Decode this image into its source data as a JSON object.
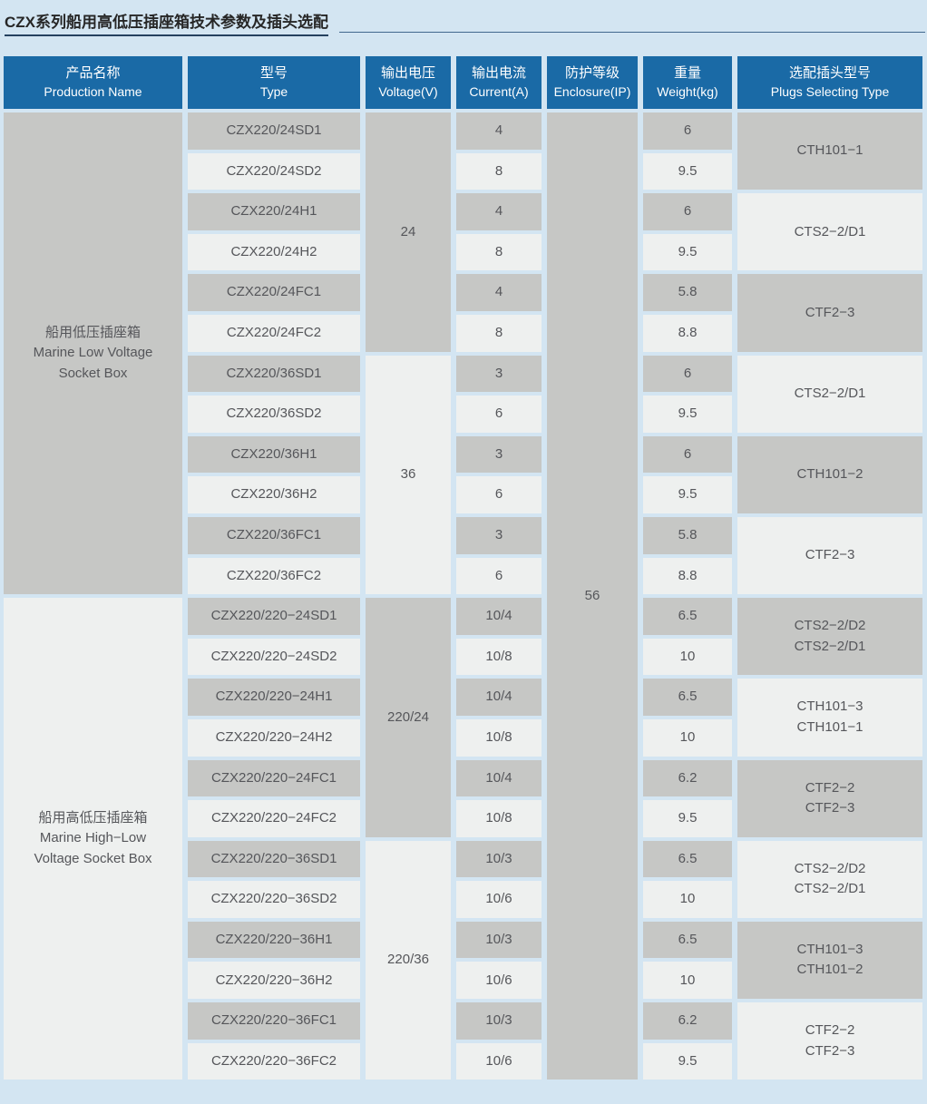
{
  "title": "CZX系列船用高低压插座箱技术参数及插头选配",
  "colors": {
    "page_bg": "#d3e5f2",
    "header_bg": "#1a6aa6",
    "header_text": "#ffffff",
    "cell_dark": "#c6c7c5",
    "cell_light": "#eef0ef",
    "cell_text": "#55565a",
    "title_text": "#262626",
    "title_underline": "#24415f",
    "rule_line": "#41688f"
  },
  "table": {
    "headers": [
      {
        "zh": "产品名称",
        "en": "Production Name"
      },
      {
        "zh": "型号",
        "en": "Type"
      },
      {
        "zh": "输出电压",
        "en": "Voltage(V)"
      },
      {
        "zh": "输出电流",
        "en": "Current(A)"
      },
      {
        "zh": "防护等级",
        "en": "Enclosure(IP)"
      },
      {
        "zh": "重量",
        "en": "Weight(kg)"
      },
      {
        "zh": "选配插头型号",
        "en": "Plugs Selecting Type"
      }
    ],
    "products": [
      {
        "name": "船用低压插座箱\nMarine Low Voltage\nSocket Box"
      },
      {
        "name": "船用高低压插座箱\nMarine High−Low\nVoltage Socket Box"
      }
    ],
    "voltage_groups": [
      {
        "voltage": "24"
      },
      {
        "voltage": "36"
      },
      {
        "voltage": "220/24"
      },
      {
        "voltage": "220/36"
      }
    ],
    "enclosure_ip": "56",
    "plug_groups": [
      {
        "plugs": "CTH101−1"
      },
      {
        "plugs": "CTS2−2/D1"
      },
      {
        "plugs": "CTF2−3"
      },
      {
        "plugs": "CTS2−2/D1"
      },
      {
        "plugs": "CTH101−2"
      },
      {
        "plugs": "CTF2−3"
      },
      {
        "plugs": "CTS2−2/D2\nCTS2−2/D1"
      },
      {
        "plugs": "CTH101−3\nCTH101−1"
      },
      {
        "plugs": "CTF2−2\nCTF2−3"
      },
      {
        "plugs": "CTS2−2/D2\nCTS2−2/D1"
      },
      {
        "plugs": "CTH101−3\nCTH101−2"
      },
      {
        "plugs": "CTF2−2\nCTF2−3"
      }
    ],
    "rows": [
      {
        "type": "CZX220/24SD1",
        "current": "4",
        "weight": "6"
      },
      {
        "type": "CZX220/24SD2",
        "current": "8",
        "weight": "9.5"
      },
      {
        "type": "CZX220/24H1",
        "current": "4",
        "weight": "6"
      },
      {
        "type": "CZX220/24H2",
        "current": "8",
        "weight": "9.5"
      },
      {
        "type": "CZX220/24FC1",
        "current": "4",
        "weight": "5.8"
      },
      {
        "type": "CZX220/24FC2",
        "current": "8",
        "weight": "8.8"
      },
      {
        "type": "CZX220/36SD1",
        "current": "3",
        "weight": "6"
      },
      {
        "type": "CZX220/36SD2",
        "current": "6",
        "weight": "9.5"
      },
      {
        "type": "CZX220/36H1",
        "current": "3",
        "weight": "6"
      },
      {
        "type": "CZX220/36H2",
        "current": "6",
        "weight": "9.5"
      },
      {
        "type": "CZX220/36FC1",
        "current": "3",
        "weight": "5.8"
      },
      {
        "type": "CZX220/36FC2",
        "current": "6",
        "weight": "8.8"
      },
      {
        "type": "CZX220/220−24SD1",
        "current": "10/4",
        "weight": "6.5"
      },
      {
        "type": "CZX220/220−24SD2",
        "current": "10/8",
        "weight": "10"
      },
      {
        "type": "CZX220/220−24H1",
        "current": "10/4",
        "weight": "6.5"
      },
      {
        "type": "CZX220/220−24H2",
        "current": "10/8",
        "weight": "10"
      },
      {
        "type": "CZX220/220−24FC1",
        "current": "10/4",
        "weight": "6.2"
      },
      {
        "type": "CZX220/220−24FC2",
        "current": "10/8",
        "weight": "9.5"
      },
      {
        "type": "CZX220/220−36SD1",
        "current": "10/3",
        "weight": "6.5"
      },
      {
        "type": "CZX220/220−36SD2",
        "current": "10/6",
        "weight": "10"
      },
      {
        "type": "CZX220/220−36H1",
        "current": "10/3",
        "weight": "6.5"
      },
      {
        "type": "CZX220/220−36H2",
        "current": "10/6",
        "weight": "10"
      },
      {
        "type": "CZX220/220−36FC1",
        "current": "10/3",
        "weight": "6.2"
      },
      {
        "type": "CZX220/220−36FC2",
        "current": "10/6",
        "weight": "9.5"
      }
    ]
  }
}
